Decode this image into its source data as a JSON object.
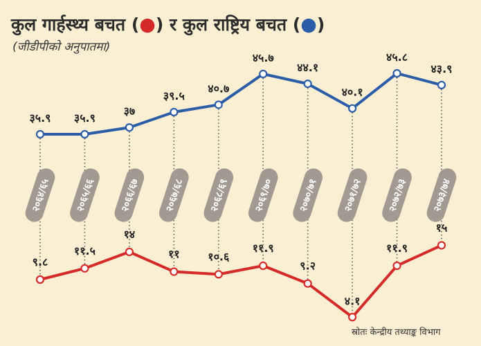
{
  "chart_data": {
    "type": "line",
    "title": "कुल गार्हस्थ्य बचत (●) र कुल राष्ट्रिय बचत (●)",
    "title_parts": {
      "part1": "कुल गार्हस्थ्य बचत (",
      "part2": ") र कुल राष्ट्रिय बचत (",
      "part3": ")"
    },
    "subtitle": "(जीडीपीको अनुपातमा)",
    "source": "स्रोतः केन्द्रीय तथ्याङ्क विभाग",
    "categories": [
      "२०६४/६५",
      "२०६५/६६",
      "२०६६/६७",
      "२०६७/६८",
      "२०६८/६९",
      "२०६९/७०",
      "२०७०/७१",
      "२०७१/७२",
      "२०७२/७३",
      "२०७३/७४"
    ],
    "series": [
      {
        "name": "कुल राष्ट्रिय बचत",
        "color": "#2a5ca8",
        "values": [
          35.9,
          35.9,
          37,
          39.5,
          40.7,
          45.7,
          44.1,
          40.1,
          45.8,
          43.9
        ],
        "labels": [
          "३५.९",
          "३५.९",
          "३७",
          "३९.५",
          "४०.७",
          "४५.७",
          "४४.१",
          "४०.१",
          "४५.८",
          "४३.९"
        ]
      },
      {
        "name": "कुल गार्हस्थ्य बचत",
        "color": "#d42a2a",
        "values": [
          9.8,
          11.5,
          14,
          11,
          10.6,
          11.9,
          9.2,
          4.1,
          11.9,
          15
        ],
        "labels": [
          "९.८",
          "११.५",
          "१४",
          "११",
          "१०.६",
          "११.९",
          "९.२",
          "४.१",
          "११.९",
          "१५"
        ]
      }
    ],
    "colors": {
      "background": "#fbefd3",
      "label_pill": "#a29a91",
      "dotted_line": "#555555"
    },
    "grid": false,
    "legend": "in-title"
  }
}
